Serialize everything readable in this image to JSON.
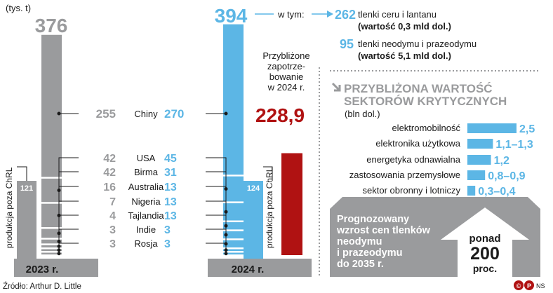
{
  "production": {
    "unit": "(tys. t)",
    "totals": [
      {
        "year": "2023 r.",
        "value": 376
      },
      {
        "year": "2024 r.",
        "value": 394
      }
    ],
    "outside_china_label": "produkcja poza ChRL",
    "outside_china": [
      121,
      124
    ],
    "in_which_label": "w tym:",
    "breakdown": [
      {
        "value": 262,
        "line1": "tlenki ceru i lantanu",
        "line2": "(wartość 0,3 mld dol.)"
      },
      {
        "value": 95,
        "line1": "tlenki neodymu i prazeodymu",
        "line2": "(wartość 5,1 mld dol.)"
      }
    ]
  },
  "chart_data": [
    {
      "type": "bar",
      "title": "",
      "xlabel": "",
      "ylabel": "(tys. t)",
      "categories": [
        "Chiny",
        "USA",
        "Birma",
        "Australia",
        "Nigeria",
        "Tajlandia",
        "Indie",
        "Rosja"
      ],
      "series": [
        {
          "name": "2023 r.",
          "values": [
            255,
            42,
            42,
            16,
            7,
            4,
            3,
            3
          ]
        },
        {
          "name": "2024 r.",
          "values": [
            270,
            45,
            31,
            13,
            13,
            13,
            3,
            3
          ]
        }
      ]
    },
    {
      "type": "bar",
      "title": "",
      "categories": [
        "Przybliżone zapotrzebowanie w 2024 r."
      ],
      "values": [
        228.9
      ],
      "value_label": "228,9",
      "label_lines": [
        "Przybliżone",
        "zapotrze-",
        "bowanie",
        "w 2024 r."
      ]
    },
    {
      "type": "bar",
      "orientation": "horizontal",
      "title": "PRZYBLIŻONA WARTOŚĆ SEKTORÓW KRYTYCZNYCH",
      "title_lines": [
        "PRZYBLIŻONA WARTOŚĆ",
        "SEKTORÓW KRYTYCZNYCH"
      ],
      "unit": "(bln dol.)",
      "categories": [
        "elektromobilność",
        "elektronika użytkowa",
        "energetyka odnawialna",
        "zastosowania przemysłowe",
        "sektor obronny i lotniczy"
      ],
      "values": [
        2.5,
        1.3,
        1.2,
        0.9,
        0.4
      ],
      "value_labels": [
        "2,5",
        "1,1–1,3",
        "1,2",
        "0,8–0,9",
        "0,3–0,4"
      ]
    }
  ],
  "forecast": {
    "lines": [
      "Prognozowany",
      "wzrost cen tlenków",
      "neodymu",
      "i prazeodymu",
      "do 2035 r."
    ],
    "arrow": {
      "top": "ponad",
      "value": "200",
      "bottom": "proc."
    }
  },
  "source": "Źródło: Arthur D. Little",
  "credit": "NS",
  "colors": {
    "gray": "#9a9b9d",
    "blue": "#5cb6e5",
    "red": "#b01212",
    "dark": "#1a1a1a",
    "panel": "#9a9b9d"
  }
}
